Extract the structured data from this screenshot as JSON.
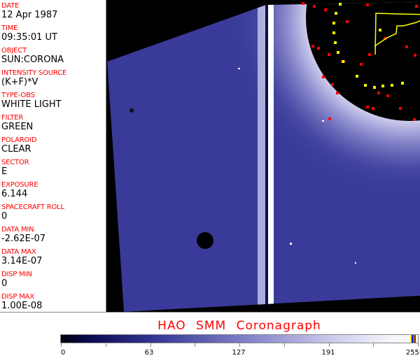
{
  "fields": [
    {
      "label": "DATE",
      "value": "12 Apr 1987"
    },
    {
      "label": "TIME",
      "value": "09:35:01 UT"
    },
    {
      "label": "OBJECT",
      "value": "SUN:CORONA"
    },
    {
      "label": "INTENSITY SOURCE",
      "value": "(K+F)*V"
    },
    {
      "label": "TYPE-OBS",
      "value": "WHITE LIGHT"
    },
    {
      "label": "FILTER",
      "value": "GREEN"
    },
    {
      "label": "POLAROID",
      "value": "CLEAR"
    },
    {
      "label": "SECTOR",
      "value": "E"
    },
    {
      "label": "EXPOSURE",
      "value": "6.144"
    },
    {
      "label": "SPACECRAFT ROLL",
      "value": "0"
    },
    {
      "label": "DATA MIN",
      "value": "-2.62E-07"
    },
    {
      "label": "DATA MAX",
      "value": "3.14E-07"
    },
    {
      "label": "DISP MIN",
      "value": "0"
    },
    {
      "label": "DISP MAX",
      "value": "1.00E-08"
    }
  ],
  "title": "HAO  SMM Coronagraph",
  "colorbar": {
    "ticks": [
      "0",
      "63",
      "127",
      "191",
      "255"
    ],
    "min": 0,
    "max": 255,
    "colors": {
      "low": "#000010",
      "mid": "#3a3a9a",
      "high": "#fafafa"
    },
    "end_swatches": [
      "#ffff00",
      "#0000ff",
      "#00c000",
      "#ff0000"
    ]
  },
  "colors": {
    "label": "#ff0000",
    "image_base": "#3a3a9a",
    "occulter": "#000000"
  }
}
